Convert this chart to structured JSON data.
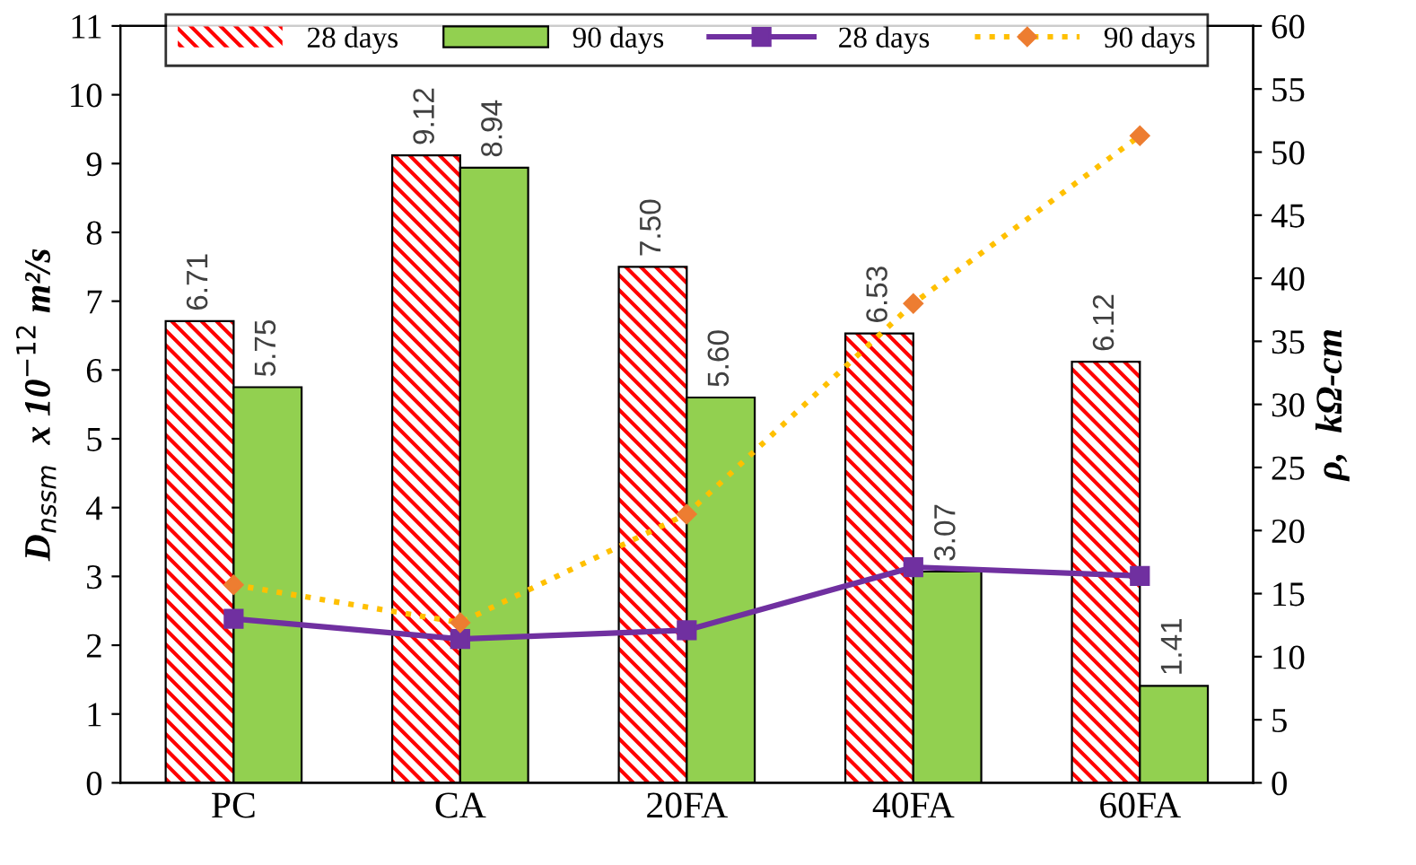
{
  "chart_data": {
    "type": "bar",
    "categories": [
      "PC",
      "CA",
      "20FA",
      "40FA",
      "60FA"
    ],
    "ylabel": "D$_{nssm}$  x 10$^{−12}$ m²/s",
    "y2label": "ρ,  kΩ-cm",
    "series": [
      {
        "name": "28 days",
        "color": "#ff0000",
        "values": [
          6.71,
          9.12,
          7.5,
          6.53,
          6.12
        ],
        "value_labels": [
          "6.71",
          "9.12",
          "7.50",
          "6.53",
          "6.12"
        ]
      },
      {
        "name": "90 days",
        "color": "#92d050",
        "values": [
          5.75,
          8.94,
          5.6,
          3.07,
          1.41
        ],
        "value_labels": [
          "5.75",
          "8.94",
          "5.60",
          "3.07",
          "1.41"
        ]
      },
      {
        "name": "28 days",
        "type": "line",
        "axis": "y2",
        "color": "#7030a0",
        "marker": "square",
        "line_style": "solid",
        "values": [
          13.0,
          11.4,
          12.1,
          17.1,
          16.4
        ]
      },
      {
        "name": "90 days",
        "type": "line",
        "axis": "y2",
        "color": "#ffc000",
        "marker": "diamond",
        "line_style": "dotted",
        "values": [
          15.7,
          12.7,
          21.3,
          38.0,
          51.3
        ]
      }
    ],
    "ylim": [
      0,
      11
    ],
    "yticks": [
      0,
      1,
      2,
      3,
      4,
      5,
      6,
      7,
      8,
      9,
      10,
      11
    ],
    "y2lim": [
      0,
      60
    ],
    "y2ticks": [
      0,
      5,
      10,
      15,
      20,
      25,
      30,
      35,
      40,
      45,
      50,
      55,
      60
    ],
    "legend": "top",
    "grid": false
  }
}
